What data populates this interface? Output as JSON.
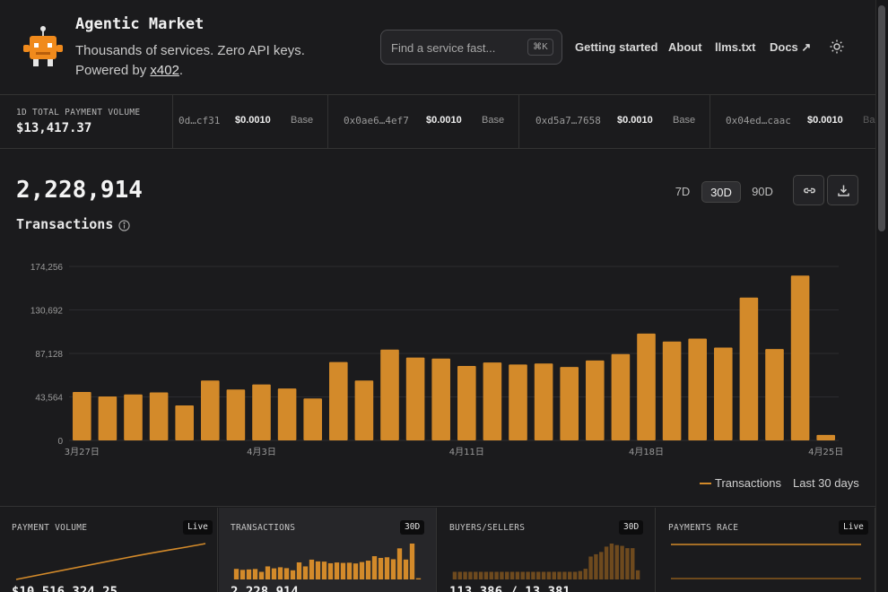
{
  "header": {
    "title": "Agentic Market",
    "subtitle_line1": "Thousands of services. Zero API keys.",
    "subtitle_prefix": "Powered by ",
    "subtitle_link": "x402",
    "subtitle_suffix": ".",
    "search_placeholder": "Find a service fast...",
    "search_shortcut": "⌘K",
    "nav": [
      "Getting started",
      "About",
      "llms.txt",
      "Docs ↗"
    ],
    "theme_icon": "sun-icon"
  },
  "ticker": {
    "label": "1D TOTAL PAYMENT VOLUME",
    "value": "$13,417.37",
    "items": [
      {
        "address": "0d…cf31",
        "amount": "$0.0010",
        "network": "Base"
      },
      {
        "address": "0x0ae6…4ef7",
        "amount": "$0.0010",
        "network": "Base"
      },
      {
        "address": "0xd5a7…7658",
        "amount": "$0.0010",
        "network": "Base"
      },
      {
        "address": "0x04ed…caac",
        "amount": "$0.0010",
        "network": "Ba"
      }
    ]
  },
  "main": {
    "total": "2,228,914",
    "metric": "Transactions",
    "ranges": [
      "7D",
      "30D",
      "90D"
    ],
    "active_range": "30D",
    "legend_label": "Transactions",
    "legend_period": "Last 30 days"
  },
  "chart_data": {
    "type": "bar",
    "color": "#d38a2a",
    "y_ticks": [
      "174,256",
      "130,692",
      "87,128",
      "43,564",
      "0"
    ],
    "ylim": [
      0,
      174256
    ],
    "x_tick_labels": [
      {
        "index": 0,
        "label": "3月27日"
      },
      {
        "index": 7,
        "label": "4月3日"
      },
      {
        "index": 15,
        "label": "4月11日"
      },
      {
        "index": 22,
        "label": "4月18日"
      },
      {
        "index": 29,
        "label": "4月25日"
      }
    ],
    "values": [
      48500,
      44000,
      46000,
      48000,
      35000,
      60000,
      51000,
      56000,
      52000,
      42000,
      78500,
      60000,
      91000,
      83000,
      82000,
      74500,
      78000,
      76000,
      77000,
      73500,
      80000,
      86500,
      107000,
      99000,
      102000,
      93000,
      143000,
      91500,
      165000,
      5500
    ],
    "title": "",
    "xlabel": "",
    "ylabel": ""
  },
  "cards": [
    {
      "title": "PAYMENT VOLUME",
      "badge": "Live",
      "value": "$10,516,324.25"
    },
    {
      "title": "TRANSACTIONS",
      "badge": "30D",
      "value": "2,228,914"
    },
    {
      "title": "BUYERS/SELLERS",
      "badge": "30D",
      "value": "113,386 / 13,381"
    },
    {
      "title": "PAYMENTS RACE",
      "badge": "Live",
      "value": ""
    }
  ]
}
